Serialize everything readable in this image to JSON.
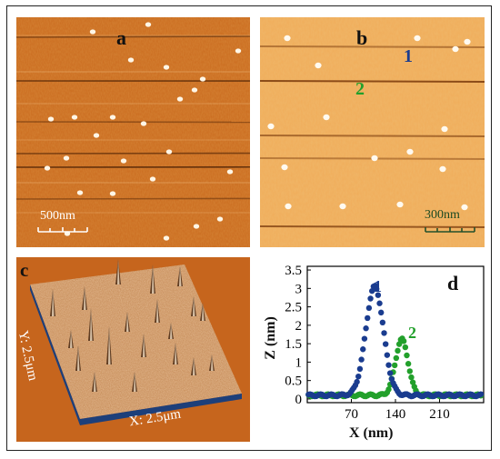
{
  "panels": {
    "a": {
      "label": "a",
      "scale_label": "500nm"
    },
    "b": {
      "label": "b",
      "scale_label": "300nm",
      "marker_1": "1",
      "marker_2": "2"
    },
    "c": {
      "label": "c",
      "y_axis_label": "Y: 2.5μm",
      "x_axis_label": "X: 2.5μm"
    },
    "d": {
      "label": "d"
    }
  },
  "colors": {
    "afm_base": "#cc6a1c",
    "afm_light": "#f1b263",
    "series_1": "#1a3c8f",
    "series_2": "#22a02b",
    "profile_3d_base": "#1d3f7a"
  },
  "chart_data": {
    "type": "scatter",
    "title": "",
    "xlabel": "X (nm)",
    "ylabel": "Z (nm)",
    "xlim": [
      0,
      280
    ],
    "ylim": [
      -0.1,
      3.6
    ],
    "x_ticks": [
      70,
      140,
      210
    ],
    "y_ticks": [
      0,
      0.5,
      1,
      1.5,
      2,
      2.5,
      3,
      3.5
    ],
    "x_tick_labels": [
      "70",
      "140",
      "210"
    ],
    "y_tick_labels": [
      "0",
      "0.5",
      "1",
      "1.5",
      "2",
      "2.5",
      "3",
      "3.5"
    ],
    "series": [
      {
        "name": "1",
        "peak_x": 107,
        "peak_z": 3.05,
        "width": 14,
        "baseline": 0.1
      },
      {
        "name": "2",
        "peak_x": 150,
        "peak_z": 1.62,
        "width": 10,
        "baseline": 0.1
      }
    ],
    "series_labels": [
      "1",
      "2"
    ]
  }
}
